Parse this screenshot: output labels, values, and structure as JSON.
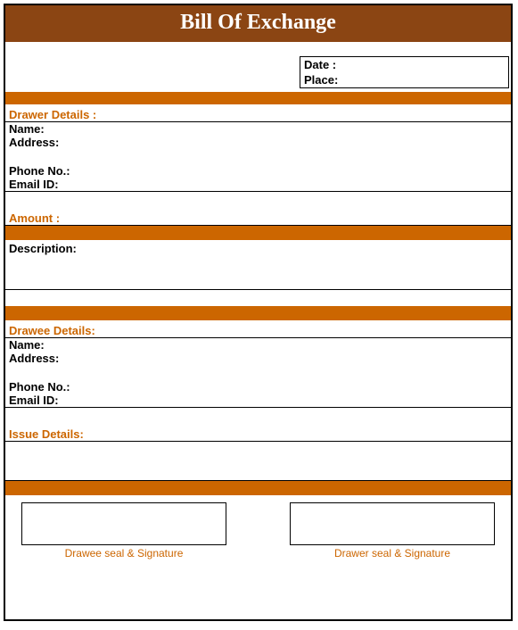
{
  "title": "Bill Of Exchange",
  "dateBox": {
    "dateLabel": "Date :",
    "placeLabel": "Place:"
  },
  "drawer": {
    "heading": "Drawer Details :",
    "name": "Name:",
    "address": "Address:",
    "phone": "Phone No.:",
    "email": "Email ID:"
  },
  "amount": {
    "heading": "Amount :"
  },
  "description": {
    "label": "Description:"
  },
  "drawee": {
    "heading": "Drawee Details:",
    "name": "Name:",
    "address": "Address:",
    "phone": "Phone No.:",
    "email": "Email ID:"
  },
  "issue": {
    "heading": "Issue Details:"
  },
  "signatures": {
    "drawee": "Drawee seal & Signature",
    "drawer": "Drawer seal & Signature"
  },
  "colors": {
    "titleBg": "#8b4513",
    "accent": "#cc6600",
    "border": "#000000",
    "text": "#000000",
    "bg": "#ffffff"
  }
}
